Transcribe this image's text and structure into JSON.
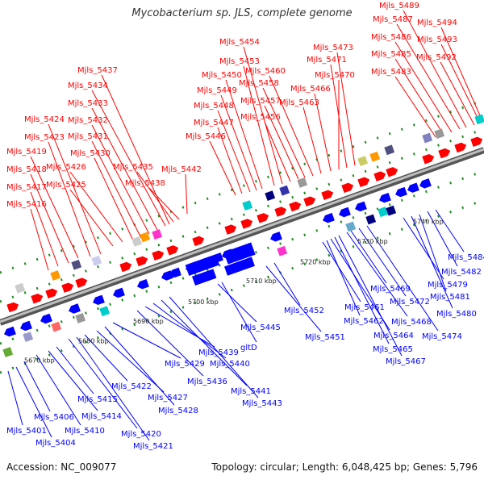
{
  "title": "Mycobacterium sp. JLS, complete genome",
  "footer": {
    "accession": "Accession: NC_009077",
    "summary": "Topology: circular; Length: 6,048,425 bp; Genes: 5,796"
  },
  "colors": {
    "forward": "#ff0000",
    "reverse": "#0000ff",
    "backbone": "#8c8c8c",
    "orf_dot": "#228b22",
    "text": "#333333"
  },
  "axis_ticks": [
    "5670 kbp",
    "5680 kbp",
    "5690 kbp",
    "5700 kbp",
    "5710 kbp",
    "5720 kbp",
    "5730 kbp",
    "5740 kbp"
  ],
  "top_labels": [
    "Mjls_5416",
    "Mjls_5417",
    "Mjls_5418",
    "Mjls_5419",
    "Mjls_5423",
    "Mjls_5424",
    "Mjls_5425",
    "Mjls_5426",
    "Mjls_5430",
    "Mjls_5431",
    "Mjls_5432",
    "Mjls_5433",
    "Mjls_5434",
    "Mjls_5437",
    "Mjls_5435",
    "Mjls_5438",
    "Mjls_5442",
    "Mjls_5446",
    "Mjls_5447",
    "Mjls_5448",
    "Mjls_5449",
    "Mjls_5450",
    "Mjls_5453",
    "Mjls_5454",
    "Mjls_5456",
    "Mjls_5457",
    "Mjls_5458",
    "Mjls_5460",
    "Mjls_5463",
    "Mjls_5466",
    "Mjls_5470",
    "Mjls_5471",
    "Mjls_5473",
    "Mjls_5483",
    "Mjls_5485",
    "Mjls_5486",
    "Mjls_5487",
    "Mjls_5489",
    "Mjls_5492",
    "Mjls_5493",
    "Mjls_5494"
  ],
  "bottom_labels": [
    "Mjls_5401",
    "Mjls_5404",
    "Mjls_5406",
    "Mjls_5410",
    "Mjls_5414",
    "Mjls_5415",
    "Mjls_5420",
    "Mjls_5421",
    "Mjls_5422",
    "Mjls_5427",
    "Mjls_5428",
    "Mjls_5429",
    "Mjls_5436",
    "Mjls_5439",
    "Mjls_5440",
    "Mjls_5441",
    "Mjls_5443",
    "Mjls_5445",
    "gltD",
    "Mjls_5451",
    "Mjls_5452",
    "Mjls_5461",
    "Mjls_5462",
    "Mjls_5464",
    "Mjls_5465",
    "Mjls_5467",
    "Mjls_5468",
    "Mjls_5469",
    "Mjls_5472",
    "Mjls_5474",
    "Mjls_5479",
    "Mjls_5480",
    "Mjls_5481",
    "Mjls_5482",
    "Mjls_5484"
  ]
}
